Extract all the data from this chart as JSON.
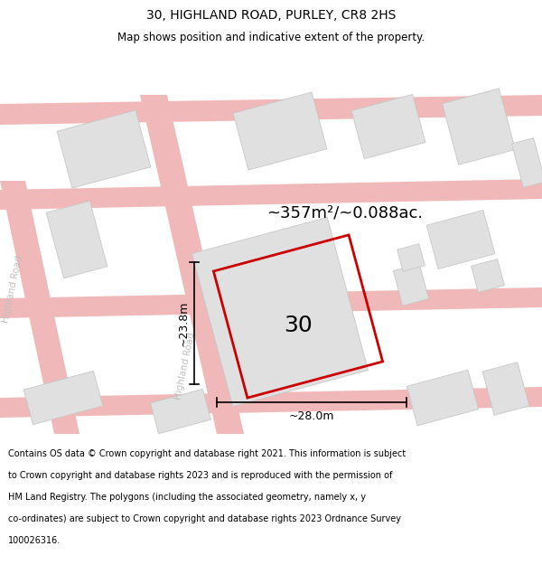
{
  "title": "30, HIGHLAND ROAD, PURLEY, CR8 2HS",
  "subtitle": "Map shows position and indicative extent of the property.",
  "area_label": "~357m²/~0.088ac.",
  "property_number": "30",
  "dim_width": "~28.0m",
  "dim_height": "~23.8m",
  "footer_line1": "Contains OS data © Crown copyright and database right 2021. This information is subject",
  "footer_line2": "to Crown copyright and database rights 2023 and is reproduced with the permission of",
  "footer_line3": "HM Land Registry. The polygons (including the associated geometry, namely x, y",
  "footer_line4": "co-ordinates) are subject to Crown copyright and database rights 2023 Ordnance Survey",
  "footer_line5": "100026316.",
  "road_color": "#f0b8b8",
  "road_color2": "#f5c8c8",
  "building_color": "#e0e0e0",
  "building_edge": "#c8c8c8",
  "property_outline": "#cc0000",
  "road_label_color": "#c0c0c0"
}
